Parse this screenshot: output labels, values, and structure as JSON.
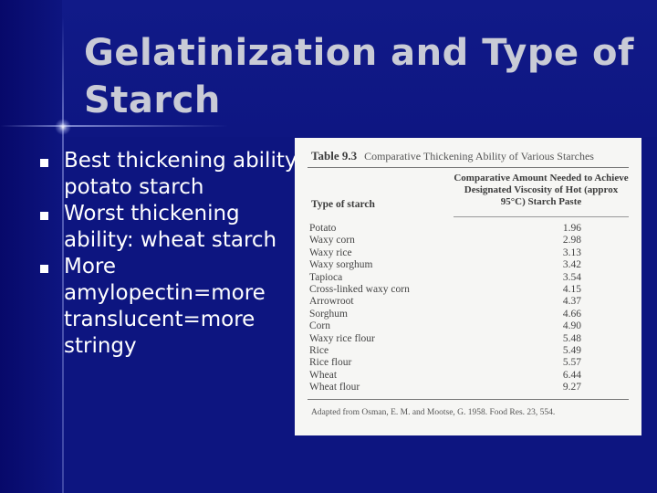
{
  "slide": {
    "title": "Gelatinization and Type of Starch",
    "bullets": [
      "Best thickening ability: potato starch",
      "Worst thickening ability: wheat starch",
      "More amylopectin=more translucent=more stringy"
    ]
  },
  "table": {
    "number": "Table 9.3",
    "title": "Comparative Thickening Ability of Various Starches",
    "column_left": "Type of starch",
    "column_right": "Comparative Amount Needed to Achieve Designated Viscosity of Hot (approx 95°C) Starch Paste",
    "rows": [
      {
        "name": "Potato",
        "value": "1.96"
      },
      {
        "name": "Waxy corn",
        "value": "2.98"
      },
      {
        "name": "Waxy rice",
        "value": "3.13"
      },
      {
        "name": "Waxy sorghum",
        "value": "3.42"
      },
      {
        "name": "Tapioca",
        "value": "3.54"
      },
      {
        "name": "Cross-linked waxy corn",
        "value": "4.15"
      },
      {
        "name": "Arrowroot",
        "value": "4.37"
      },
      {
        "name": "Sorghum",
        "value": "4.66"
      },
      {
        "name": "Corn",
        "value": "4.90"
      },
      {
        "name": "Waxy rice flour",
        "value": "5.48"
      },
      {
        "name": "Rice",
        "value": "5.49"
      },
      {
        "name": "Rice flour",
        "value": "5.57"
      },
      {
        "name": "Wheat",
        "value": "6.44"
      },
      {
        "name": "Wheat flour",
        "value": "9.27"
      }
    ],
    "source": "Adapted from Osman, E. M. and Mootse, G. 1958. Food Res. 23, 554."
  }
}
